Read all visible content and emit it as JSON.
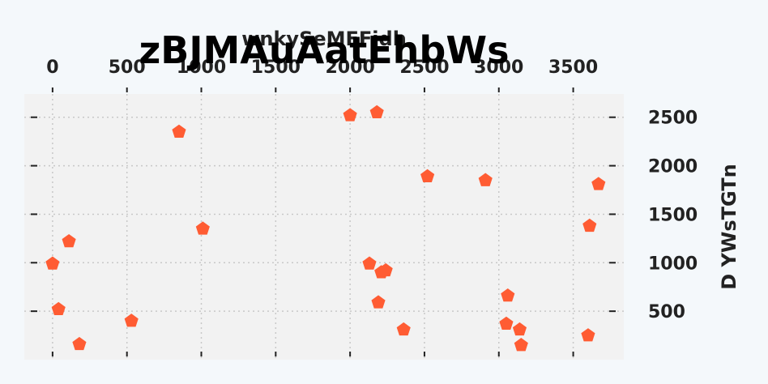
{
  "chart_data": {
    "type": "scatter",
    "title": "zBJMAuAatEhbWs",
    "xlabel": "wnkySeMFFidh",
    "ylabel": "D YWsTGTn",
    "x_axis_position": "top",
    "y_axis_position": "right",
    "xlim": [
      -190,
      3840
    ],
    "ylim": [
      0,
      2740
    ],
    "xticks": [
      0,
      500,
      1000,
      1500,
      2000,
      2500,
      3000,
      3500
    ],
    "yticks": [
      500,
      1000,
      1500,
      2000,
      2500
    ],
    "grid": true,
    "marker": "pentagon",
    "colors": {
      "marker": "#ff5c33",
      "plot_background": "#f2f2f2",
      "page_background": "#f4f8fb",
      "grid": "#c8c8c8"
    },
    "series": [
      {
        "x": [
          2000,
          2180,
          850,
          2520,
          2910,
          3670,
          1010,
          3610,
          110,
          0,
          2130,
          2240,
          2210,
          3060,
          40,
          2190,
          530,
          2360,
          3050,
          3140,
          3600,
          180,
          3150
        ],
        "y": [
          2520,
          2550,
          2350,
          1890,
          1850,
          1810,
          1350,
          1380,
          1220,
          990,
          990,
          920,
          900,
          660,
          520,
          590,
          400,
          310,
          370,
          310,
          250,
          160,
          150
        ]
      }
    ]
  }
}
